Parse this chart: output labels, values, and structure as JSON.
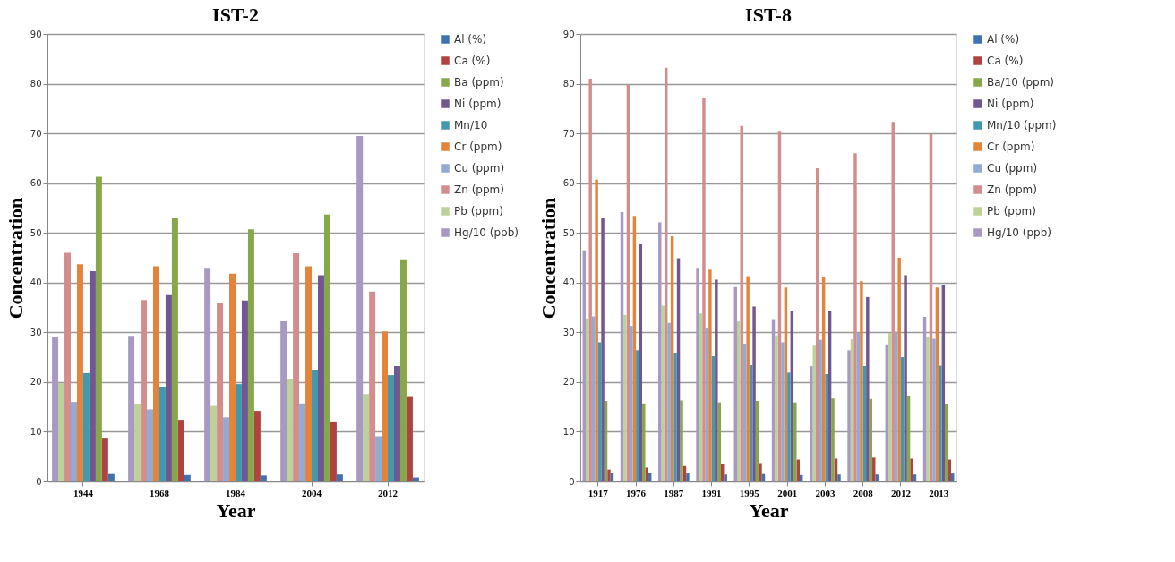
{
  "chart_data": [
    {
      "type": "bar",
      "title": "IST-2",
      "xlabel": "Year",
      "ylabel": "Concentration",
      "categories": [
        "1944",
        "1968",
        "1984",
        "2004",
        "2012"
      ],
      "ylim": [
        0,
        90
      ],
      "yticks": [
        0,
        10,
        20,
        30,
        40,
        50,
        60,
        70,
        80,
        90
      ],
      "grid": "y",
      "legend": "right",
      "series": [
        {
          "name": "Al (%)",
          "color": "#3e72b0",
          "values": [
            1.5,
            1.3,
            1.2,
            1.4,
            0.8
          ]
        },
        {
          "name": "Ca (%)",
          "color": "#b04342",
          "values": [
            8.8,
            12.4,
            14.2,
            11.9,
            17.0
          ]
        },
        {
          "name": "Ba (ppm)",
          "color": "#87a84a",
          "values": [
            61.3,
            52.9,
            50.7,
            53.7,
            44.7
          ]
        },
        {
          "name": "Ni (ppm)",
          "color": "#71578f",
          "values": [
            42.3,
            37.5,
            36.4,
            41.5,
            23.2
          ]
        },
        {
          "name": "Mn/10",
          "color": "#4199b0",
          "values": [
            21.8,
            18.9,
            19.6,
            22.4,
            21.4
          ]
        },
        {
          "name": "Cr (ppm)",
          "color": "#e3843a",
          "values": [
            43.7,
            43.3,
            41.8,
            43.3,
            30.2
          ]
        },
        {
          "name": "Cu (ppm)",
          "color": "#91aad6",
          "values": [
            16.0,
            14.5,
            12.9,
            15.7,
            9.1
          ]
        },
        {
          "name": "Zn (ppm)",
          "color": "#d48d8d",
          "values": [
            46.0,
            36.5,
            35.8,
            45.9,
            38.2
          ]
        },
        {
          "name": "Pb (ppm)",
          "color": "#bdd298",
          "values": [
            19.8,
            15.5,
            15.2,
            20.6,
            17.6
          ]
        },
        {
          "name": "Hg/10 (ppb)",
          "color": "#a899c2",
          "values": [
            29.0,
            29.1,
            42.8,
            32.2,
            69.5
          ]
        }
      ]
    },
    {
      "type": "bar",
      "title": "IST-8",
      "xlabel": "Year",
      "ylabel": "Concentration",
      "categories": [
        "1917",
        "1976",
        "1987",
        "1991",
        "1995",
        "2001",
        "2003",
        "2008",
        "2012",
        "2013"
      ],
      "ylim": [
        0,
        90
      ],
      "yticks": [
        0,
        10,
        20,
        30,
        40,
        50,
        60,
        70,
        80,
        90
      ],
      "grid": "y",
      "legend": "right",
      "series": [
        {
          "name": "Al (%)",
          "color": "#3e72b0",
          "values": [
            1.8,
            1.8,
            1.6,
            1.4,
            1.5,
            1.3,
            1.4,
            1.4,
            1.4,
            1.6
          ]
        },
        {
          "name": "Ca (%)",
          "color": "#b04342",
          "values": [
            2.4,
            2.8,
            3.1,
            3.6,
            3.7,
            4.4,
            4.6,
            4.8,
            4.6,
            4.4
          ]
        },
        {
          "name": "Ba/10 (ppm)",
          "color": "#87a84a",
          "values": [
            16.2,
            15.7,
            16.3,
            15.9,
            16.2,
            15.9,
            16.7,
            16.6,
            17.3,
            15.5
          ]
        },
        {
          "name": "Ni (ppm)",
          "color": "#71578f",
          "values": [
            52.9,
            47.7,
            44.9,
            40.6,
            35.2,
            34.2,
            34.2,
            37.1,
            41.5,
            39.5
          ]
        },
        {
          "name": "Mn/10 (ppm)",
          "color": "#4199b0",
          "values": [
            28.0,
            26.4,
            25.8,
            25.2,
            23.4,
            21.9,
            21.6,
            23.2,
            25.0,
            23.3
          ]
        },
        {
          "name": "Cr (ppm)",
          "color": "#e3843a",
          "values": [
            60.7,
            53.4,
            49.3,
            42.6,
            41.3,
            39.0,
            41.1,
            40.3,
            45.0,
            39.0
          ]
        },
        {
          "name": "Cu (ppm)",
          "color": "#91aad6",
          "values": [
            33.2,
            31.3,
            31.9,
            30.8,
            27.7,
            28.0,
            28.5,
            29.9,
            30.1,
            28.7
          ]
        },
        {
          "name": "Zn (ppm)",
          "color": "#d48d8d",
          "values": [
            81.0,
            79.8,
            83.2,
            77.2,
            71.5,
            70.5,
            63.0,
            66.0,
            72.3,
            69.9
          ]
        },
        {
          "name": "Pb (ppm)",
          "color": "#bdd298",
          "values": [
            32.8,
            33.5,
            35.4,
            33.8,
            32.2,
            29.4,
            27.3,
            28.6,
            29.9,
            29.0
          ]
        },
        {
          "name": "Hg/10 (ppb)",
          "color": "#a899c2",
          "values": [
            46.5,
            54.2,
            52.1,
            42.8,
            39.1,
            32.5,
            23.2,
            26.4,
            27.6,
            33.1
          ]
        }
      ]
    }
  ]
}
